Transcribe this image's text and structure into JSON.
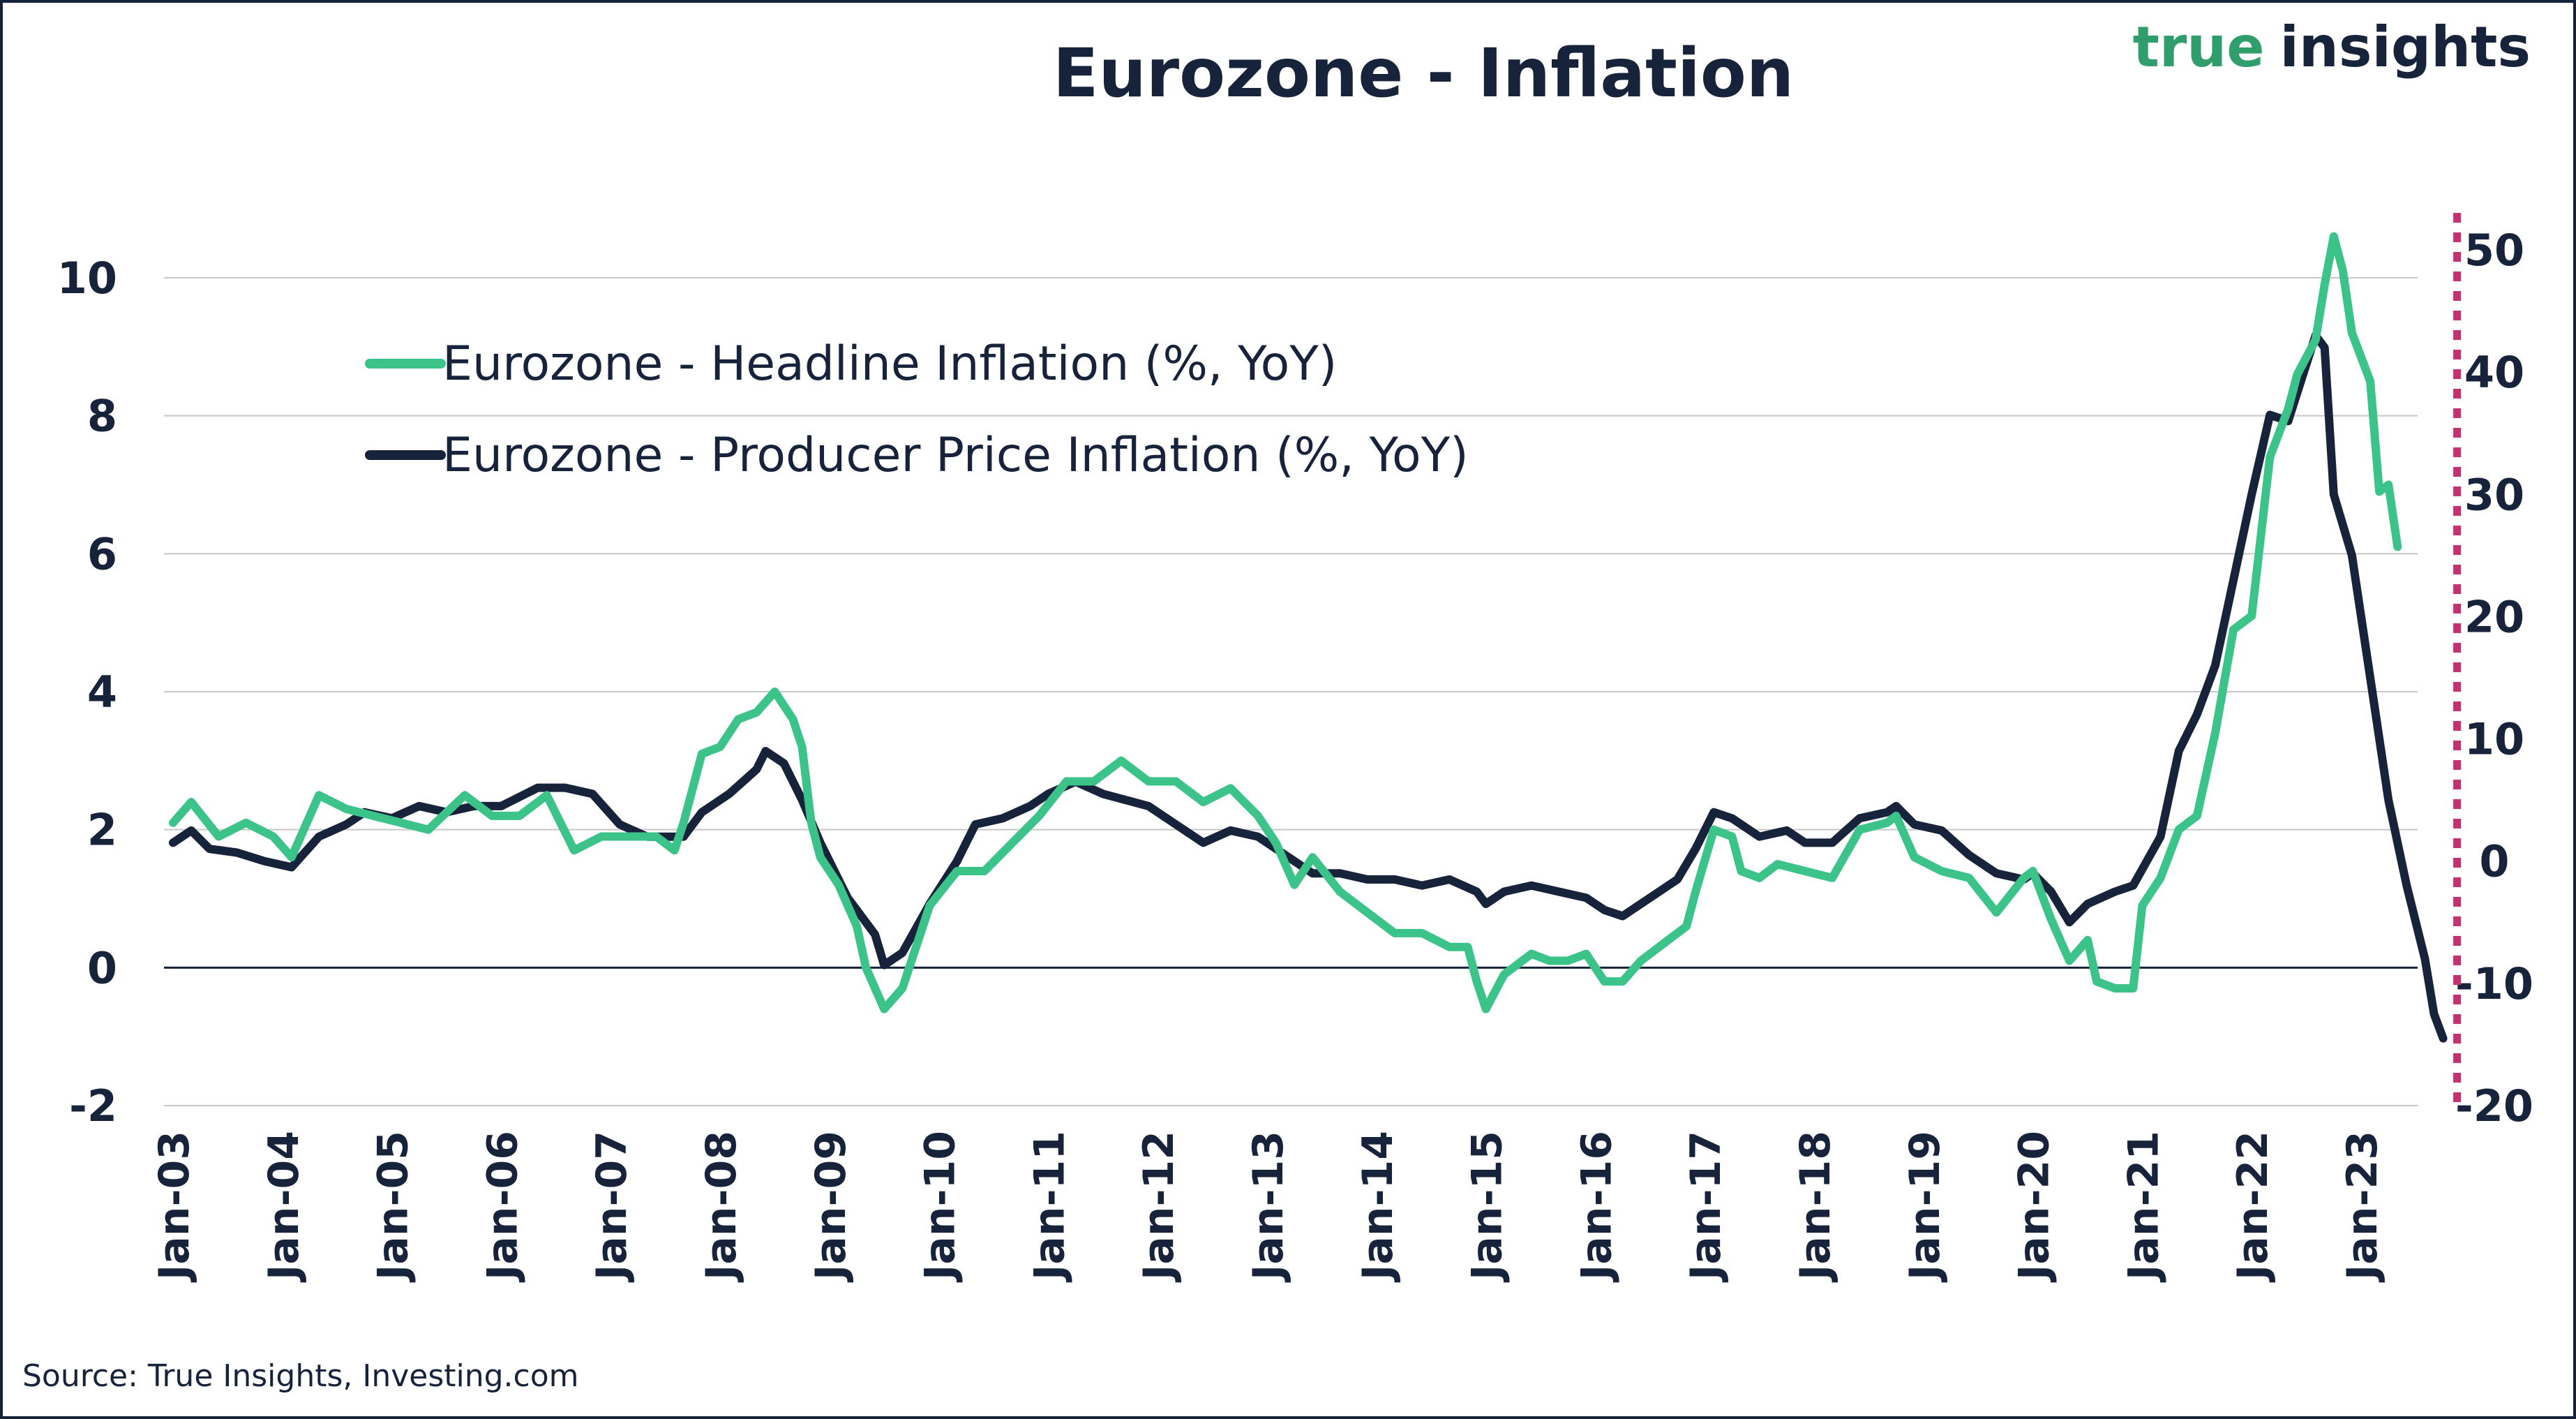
{
  "colors": {
    "headline": "#3cc389",
    "producer": "#16233a",
    "marker": "#c1336f",
    "grid": "#c8c8c8",
    "zero": "#16233a",
    "logo_true": "#2f9e6c",
    "logo_insights": "#16233a"
  },
  "logo": {
    "word1": "true",
    "word2": "insights"
  },
  "source": "Source: True Insights, Investing.com",
  "chart_data": {
    "type": "line",
    "title": "Eurozone - Inflation",
    "x_tick_labels": [
      "Jan-03",
      "Jan-04",
      "Jan-05",
      "Jan-06",
      "Jan-07",
      "Jan-08",
      "Jan-09",
      "Jan-10",
      "Jan-11",
      "Jan-12",
      "Jan-13",
      "Jan-14",
      "Jan-15",
      "Jan-16",
      "Jan-17",
      "Jan-18",
      "Jan-19",
      "Jan-20",
      "Jan-21",
      "Jan-22",
      "Jan-23"
    ],
    "x_range": [
      "2003-01",
      "2023-11"
    ],
    "y_left": {
      "ylim": [
        -2,
        11
      ],
      "ticks": [
        -2,
        0,
        2,
        4,
        6,
        8,
        10
      ]
    },
    "y_right": {
      "ylim": [
        -20,
        55
      ],
      "ticks": [
        -20,
        -10,
        0,
        10,
        20,
        30,
        40,
        50
      ]
    },
    "grid": "horizontal",
    "legend": "top-left",
    "vertical_marker": {
      "x": "2023-10",
      "style": "dotted"
    },
    "series": [
      {
        "name": "Eurozone - Headline Inflation (%, YoY)",
        "axis": "left",
        "points": [
          [
            "2003-01",
            2.1
          ],
          [
            "2003-03",
            2.4
          ],
          [
            "2003-06",
            1.9
          ],
          [
            "2003-09",
            2.1
          ],
          [
            "2003-12",
            1.9
          ],
          [
            "2004-02",
            1.6
          ],
          [
            "2004-05",
            2.5
          ],
          [
            "2004-08",
            2.3
          ],
          [
            "2004-11",
            2.2
          ],
          [
            "2005-02",
            2.1
          ],
          [
            "2005-05",
            2.0
          ],
          [
            "2005-09",
            2.5
          ],
          [
            "2005-12",
            2.2
          ],
          [
            "2006-03",
            2.2
          ],
          [
            "2006-06",
            2.5
          ],
          [
            "2006-09",
            1.7
          ],
          [
            "2006-12",
            1.9
          ],
          [
            "2007-03",
            1.9
          ],
          [
            "2007-06",
            1.9
          ],
          [
            "2007-08",
            1.7
          ],
          [
            "2007-09",
            2.1
          ],
          [
            "2007-11",
            3.1
          ],
          [
            "2008-01",
            3.2
          ],
          [
            "2008-03",
            3.6
          ],
          [
            "2008-05",
            3.7
          ],
          [
            "2008-07",
            4.0
          ],
          [
            "2008-09",
            3.6
          ],
          [
            "2008-10",
            3.2
          ],
          [
            "2008-11",
            2.1
          ],
          [
            "2008-12",
            1.6
          ],
          [
            "2009-02",
            1.2
          ],
          [
            "2009-04",
            0.6
          ],
          [
            "2009-05",
            0.0
          ],
          [
            "2009-07",
            -0.6
          ],
          [
            "2009-09",
            -0.3
          ],
          [
            "2009-11",
            0.5
          ],
          [
            "2009-12",
            0.9
          ],
          [
            "2010-03",
            1.4
          ],
          [
            "2010-06",
            1.4
          ],
          [
            "2010-09",
            1.8
          ],
          [
            "2010-12",
            2.2
          ],
          [
            "2011-03",
            2.7
          ],
          [
            "2011-06",
            2.7
          ],
          [
            "2011-09",
            3.0
          ],
          [
            "2011-12",
            2.7
          ],
          [
            "2012-03",
            2.7
          ],
          [
            "2012-06",
            2.4
          ],
          [
            "2012-09",
            2.6
          ],
          [
            "2012-12",
            2.2
          ],
          [
            "2013-02",
            1.8
          ],
          [
            "2013-04",
            1.2
          ],
          [
            "2013-06",
            1.6
          ],
          [
            "2013-09",
            1.1
          ],
          [
            "2013-12",
            0.8
          ],
          [
            "2014-03",
            0.5
          ],
          [
            "2014-06",
            0.5
          ],
          [
            "2014-09",
            0.3
          ],
          [
            "2014-11",
            0.3
          ],
          [
            "2014-12",
            -0.2
          ],
          [
            "2015-01",
            -0.6
          ],
          [
            "2015-03",
            -0.1
          ],
          [
            "2015-06",
            0.2
          ],
          [
            "2015-08",
            0.1
          ],
          [
            "2015-10",
            0.1
          ],
          [
            "2015-12",
            0.2
          ],
          [
            "2016-02",
            -0.2
          ],
          [
            "2016-04",
            -0.2
          ],
          [
            "2016-06",
            0.1
          ],
          [
            "2016-09",
            0.4
          ],
          [
            "2016-11",
            0.6
          ],
          [
            "2016-12",
            1.1
          ],
          [
            "2017-02",
            2.0
          ],
          [
            "2017-04",
            1.9
          ],
          [
            "2017-05",
            1.4
          ],
          [
            "2017-07",
            1.3
          ],
          [
            "2017-09",
            1.5
          ],
          [
            "2017-12",
            1.4
          ],
          [
            "2018-03",
            1.3
          ],
          [
            "2018-06",
            2.0
          ],
          [
            "2018-09",
            2.1
          ],
          [
            "2018-10",
            2.2
          ],
          [
            "2018-12",
            1.6
          ],
          [
            "2019-03",
            1.4
          ],
          [
            "2019-06",
            1.3
          ],
          [
            "2019-09",
            0.8
          ],
          [
            "2019-12",
            1.3
          ],
          [
            "2020-01",
            1.4
          ],
          [
            "2020-03",
            0.7
          ],
          [
            "2020-05",
            0.1
          ],
          [
            "2020-07",
            0.4
          ],
          [
            "2020-08",
            -0.2
          ],
          [
            "2020-10",
            -0.3
          ],
          [
            "2020-12",
            -0.3
          ],
          [
            "2021-01",
            0.9
          ],
          [
            "2021-03",
            1.3
          ],
          [
            "2021-05",
            2.0
          ],
          [
            "2021-07",
            2.2
          ],
          [
            "2021-09",
            3.4
          ],
          [
            "2021-11",
            4.9
          ],
          [
            "2021-12",
            5.0
          ],
          [
            "2022-01",
            5.1
          ],
          [
            "2022-03",
            7.4
          ],
          [
            "2022-05",
            8.1
          ],
          [
            "2022-06",
            8.6
          ],
          [
            "2022-08",
            9.1
          ],
          [
            "2022-09",
            9.9
          ],
          [
            "2022-10",
            10.6
          ],
          [
            "2022-11",
            10.1
          ],
          [
            "2022-12",
            9.2
          ],
          [
            "2023-02",
            8.5
          ],
          [
            "2023-03",
            6.9
          ],
          [
            "2023-04",
            7.0
          ],
          [
            "2023-05",
            6.1
          ]
        ]
      },
      {
        "name": "Eurozone - Producer Price Inflation (%, YoY)",
        "axis": "right",
        "points": [
          [
            "2003-01",
            1.5
          ],
          [
            "2003-03",
            2.5
          ],
          [
            "2003-05",
            1.0
          ],
          [
            "2003-08",
            0.7
          ],
          [
            "2003-11",
            0.0
          ],
          [
            "2004-02",
            -0.5
          ],
          [
            "2004-05",
            2.0
          ],
          [
            "2004-08",
            3.0
          ],
          [
            "2004-10",
            4.0
          ],
          [
            "2005-01",
            3.5
          ],
          [
            "2005-04",
            4.5
          ],
          [
            "2005-07",
            4.0
          ],
          [
            "2005-10",
            4.5
          ],
          [
            "2006-01",
            4.5
          ],
          [
            "2006-05",
            6.0
          ],
          [
            "2006-08",
            6.0
          ],
          [
            "2006-11",
            5.5
          ],
          [
            "2007-02",
            3.0
          ],
          [
            "2007-05",
            2.0
          ],
          [
            "2007-09",
            2.0
          ],
          [
            "2007-11",
            4.0
          ],
          [
            "2008-02",
            5.5
          ],
          [
            "2008-05",
            7.5
          ],
          [
            "2008-06",
            9.0
          ],
          [
            "2008-08",
            8.0
          ],
          [
            "2008-10",
            5.0
          ],
          [
            "2008-12",
            1.5
          ],
          [
            "2009-03",
            -3.0
          ],
          [
            "2009-06",
            -6.0
          ],
          [
            "2009-07",
            -8.5
          ],
          [
            "2009-09",
            -7.5
          ],
          [
            "2009-12",
            -3.5
          ],
          [
            "2010-03",
            0.0
          ],
          [
            "2010-05",
            3.0
          ],
          [
            "2010-08",
            3.5
          ],
          [
            "2010-11",
            4.5
          ],
          [
            "2011-01",
            5.5
          ],
          [
            "2011-04",
            6.5
          ],
          [
            "2011-07",
            5.5
          ],
          [
            "2011-12",
            4.5
          ],
          [
            "2012-03",
            3.0
          ],
          [
            "2012-06",
            1.5
          ],
          [
            "2012-09",
            2.5
          ],
          [
            "2012-12",
            2.0
          ],
          [
            "2013-03",
            0.5
          ],
          [
            "2013-06",
            -1.0
          ],
          [
            "2013-09",
            -1.0
          ],
          [
            "2013-12",
            -1.5
          ],
          [
            "2014-03",
            -1.5
          ],
          [
            "2014-06",
            -2.0
          ],
          [
            "2014-09",
            -1.5
          ],
          [
            "2014-12",
            -2.5
          ],
          [
            "2015-01",
            -3.5
          ],
          [
            "2015-03",
            -2.5
          ],
          [
            "2015-06",
            -2.0
          ],
          [
            "2015-09",
            -2.5
          ],
          [
            "2015-12",
            -3.0
          ],
          [
            "2016-02",
            -4.0
          ],
          [
            "2016-04",
            -4.5
          ],
          [
            "2016-07",
            -3.0
          ],
          [
            "2016-10",
            -1.5
          ],
          [
            "2016-12",
            1.0
          ],
          [
            "2017-02",
            4.0
          ],
          [
            "2017-04",
            3.5
          ],
          [
            "2017-07",
            2.0
          ],
          [
            "2017-10",
            2.5
          ],
          [
            "2017-12",
            1.5
          ],
          [
            "2018-03",
            1.5
          ],
          [
            "2018-06",
            3.5
          ],
          [
            "2018-09",
            4.0
          ],
          [
            "2018-10",
            4.5
          ],
          [
            "2018-12",
            3.0
          ],
          [
            "2019-03",
            2.5
          ],
          [
            "2019-06",
            0.5
          ],
          [
            "2019-09",
            -1.0
          ],
          [
            "2019-12",
            -1.5
          ],
          [
            "2020-01",
            -1.0
          ],
          [
            "2020-03",
            -2.5
          ],
          [
            "2020-05",
            -5.0
          ],
          [
            "2020-07",
            -3.5
          ],
          [
            "2020-10",
            -2.5
          ],
          [
            "2020-12",
            -2.0
          ],
          [
            "2021-03",
            2.0
          ],
          [
            "2021-05",
            9.0
          ],
          [
            "2021-07",
            12.0
          ],
          [
            "2021-09",
            16.0
          ],
          [
            "2021-11",
            23.0
          ],
          [
            "2022-01",
            30.0
          ],
          [
            "2022-03",
            36.5
          ],
          [
            "2022-05",
            36.0
          ],
          [
            "2022-08",
            43.0
          ],
          [
            "2022-09",
            42.0
          ],
          [
            "2022-10",
            30.0
          ],
          [
            "2022-12",
            25.0
          ],
          [
            "2023-02",
            15.0
          ],
          [
            "2023-04",
            5.0
          ],
          [
            "2023-06",
            -2.0
          ],
          [
            "2023-08",
            -8.0
          ],
          [
            "2023-09",
            -12.5
          ],
          [
            "2023-10",
            -14.5
          ]
        ]
      }
    ]
  }
}
